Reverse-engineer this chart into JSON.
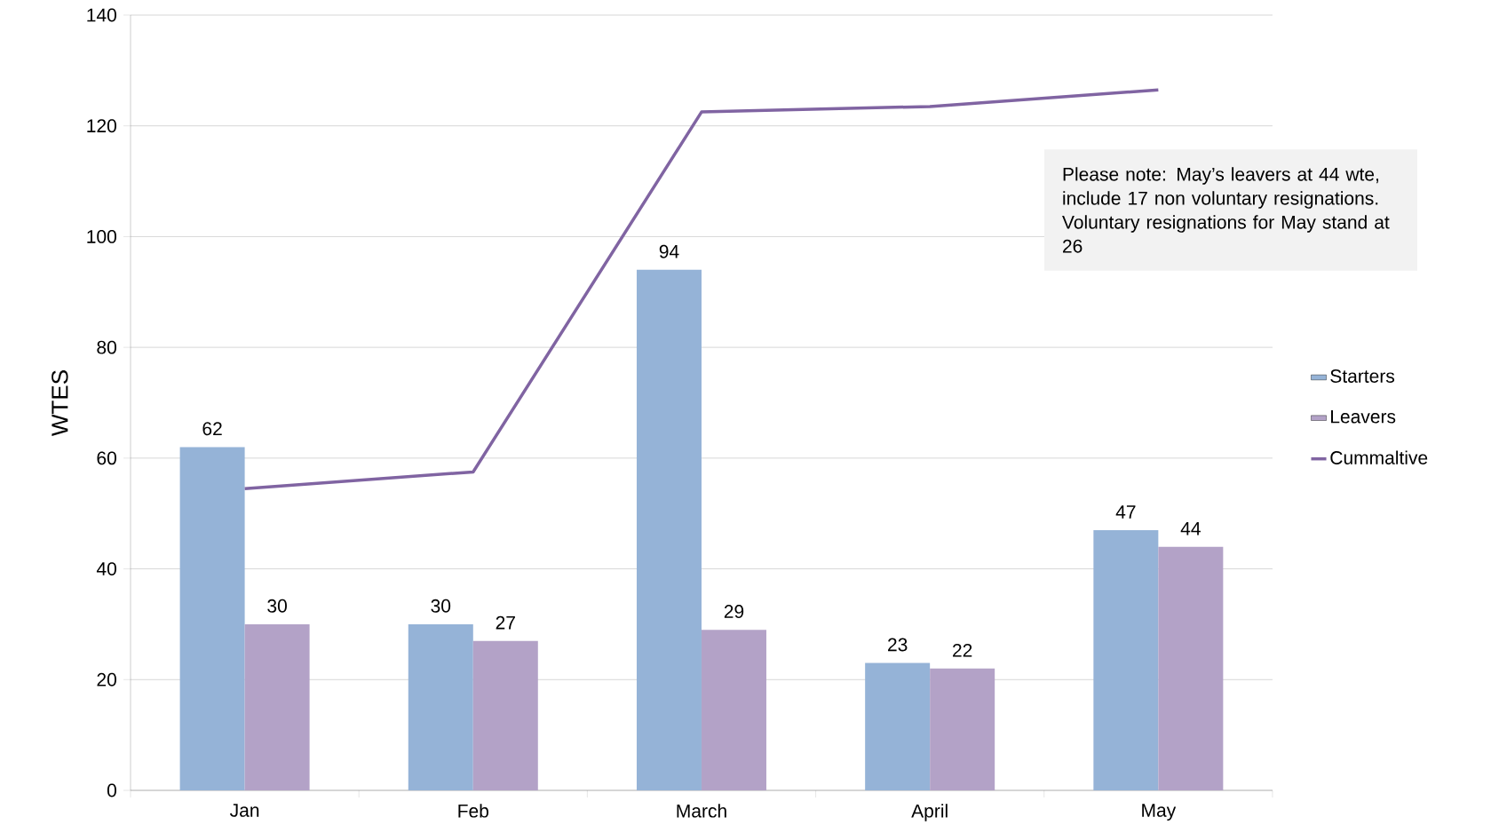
{
  "chart_data": {
    "type": "bar",
    "ylabel": "WTES",
    "categories": [
      "Jan",
      "Feb",
      "March",
      "April",
      "May"
    ],
    "series": [
      {
        "name": "Starters",
        "color": "#95b3d7",
        "values": [
          62,
          30,
          94,
          23,
          47
        ],
        "value_labels": [
          "62",
          "30",
          "94",
          "23",
          "47"
        ]
      },
      {
        "name": "Leavers",
        "color": "#b3a2c7",
        "values": [
          30,
          27,
          29,
          22,
          44
        ],
        "value_labels": [
          "30",
          "27",
          "29",
          "22",
          "44"
        ]
      },
      {
        "name": "Cummaltive",
        "type": "line",
        "color": "#8064a2",
        "values": [
          54.5,
          57.5,
          122.5,
          123.5,
          126.5
        ]
      }
    ],
    "ylim": [
      0,
      140
    ],
    "yticks": [
      0,
      20,
      40,
      60,
      80,
      100,
      120,
      140
    ],
    "grid": "y",
    "legend": "right",
    "annotations": [
      "Please note: May’s leavers at 44 wte, include 17 non voluntary resignations. Voluntary resignations for May stand at 26"
    ]
  }
}
